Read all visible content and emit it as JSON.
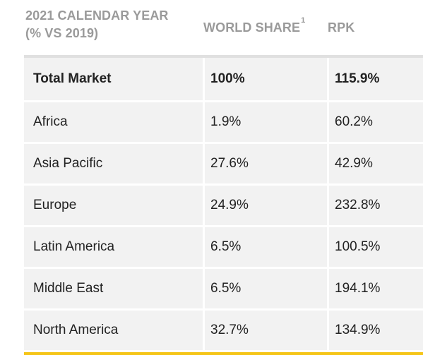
{
  "table": {
    "header": {
      "col1": "2021 CALENDAR YEAR (% VS 2019)",
      "col1_line1": "2021 CALENDAR YEAR",
      "col1_line2": "(% VS 2019)",
      "col2": "WORLD SHARE",
      "col2_sup": "1",
      "col3": "RPK"
    },
    "rows": [
      {
        "region": "Total Market",
        "world_share": "100%",
        "rpk": "115.9%"
      },
      {
        "region": "Africa",
        "world_share": "1.9%",
        "rpk": "60.2%"
      },
      {
        "region": "Asia Pacific",
        "world_share": "27.6%",
        "rpk": "42.9%"
      },
      {
        "region": "Europe",
        "world_share": "24.9%",
        "rpk": "232.8%"
      },
      {
        "region": "Latin America",
        "world_share": "6.5%",
        "rpk": "100.5%"
      },
      {
        "region": "Middle East",
        "world_share": "6.5%",
        "rpk": "194.1%"
      },
      {
        "region": "North America",
        "world_share": "32.7%",
        "rpk": "134.9%"
      }
    ]
  },
  "colors": {
    "header_text": "#9a9a9a",
    "row_background": "#f2f2f2",
    "accent_bar": "#f5c518"
  }
}
